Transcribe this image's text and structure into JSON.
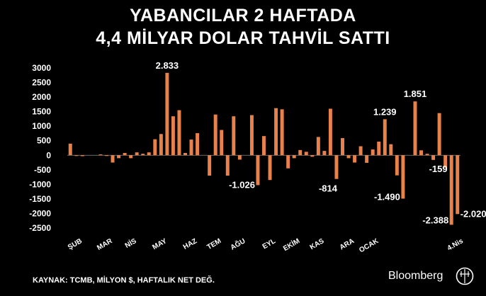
{
  "chart_data": {
    "type": "bar",
    "title_line1": "YABANCILAR 2 HAFTADA",
    "title_line2": "4,4 MİLYAR DOLAR TAHVİL SATTI",
    "source": "KAYNAK: TCMB, MİLYON $, HAFTALIK NET DEĞ.",
    "brand": "Bloomberg",
    "bar_color": "#e8824a",
    "ylim": [
      -2500,
      3000
    ],
    "yticks": [
      3000,
      2500,
      2000,
      1500,
      1000,
      500,
      0,
      -500,
      -1000,
      -1500,
      -2000,
      -2500
    ],
    "xlabels": [
      {
        "label": "ŞUB",
        "index": 2
      },
      {
        "label": "MAR",
        "index": 7
      },
      {
        "label": "NİS",
        "index": 11
      },
      {
        "label": "MAY",
        "index": 16
      },
      {
        "label": "HAZ",
        "index": 21
      },
      {
        "label": "TEM",
        "index": 25
      },
      {
        "label": "AĞU",
        "index": 29
      },
      {
        "label": "EYL",
        "index": 34
      },
      {
        "label": "EKİM",
        "index": 38
      },
      {
        "label": "KAS",
        "index": 42
      },
      {
        "label": "ARA",
        "index": 47
      },
      {
        "label": "OCAK",
        "index": 51
      },
      {
        "label": "4.Nis",
        "index": 65
      }
    ],
    "values": [
      400,
      -20,
      -30,
      0,
      0,
      30,
      -20,
      -250,
      -100,
      80,
      -100,
      100,
      50,
      100,
      550,
      730,
      2833,
      1340,
      1550,
      80,
      540,
      760,
      0,
      -700,
      1400,
      870,
      -700,
      1340,
      -150,
      0,
      1380,
      -1026,
      660,
      -850,
      1620,
      1580,
      -450,
      -100,
      180,
      120,
      -50,
      630,
      150,
      1600,
      -814,
      590,
      -100,
      -250,
      310,
      -260,
      200,
      470,
      1239,
      380,
      -690,
      -1490,
      0,
      1851,
      170,
      50,
      -159,
      1450,
      -430,
      -2388,
      -2020
    ],
    "annotations": [
      {
        "text": "2.833",
        "index": 16
      },
      {
        "text": "-1.026",
        "index": 31
      },
      {
        "text": "-814",
        "index": 44
      },
      {
        "text": "1.239",
        "index": 52
      },
      {
        "text": "-1.490",
        "index": 55
      },
      {
        "text": "1.851",
        "index": 57
      },
      {
        "text": "-159",
        "index": 60
      },
      {
        "text": "-2.388",
        "index": 63
      },
      {
        "text": "-2.020",
        "index": 64
      }
    ]
  }
}
